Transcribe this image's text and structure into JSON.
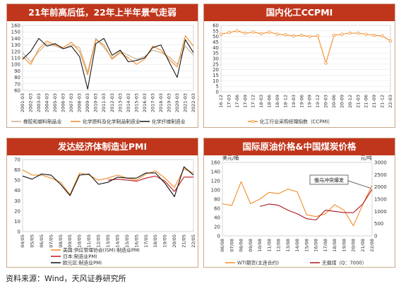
{
  "colors": {
    "title_bg": "#c0361c",
    "orange": "#f28c28",
    "dark": "#1a1a1a",
    "red": "#c0161f",
    "black": "#111111",
    "tan": "#c8b08c",
    "grid": "#dddddd"
  },
  "source_text": "资料来源：Wind，天风证券研究所",
  "chart_data": [
    {
      "id": "p1",
      "type": "line",
      "title": "21年前高后低，22年上半年景气走弱",
      "ylim": [
        60,
        160
      ],
      "yticks": [
        "60",
        "70",
        "80",
        "90",
        "100",
        "110",
        "120",
        "130",
        "140",
        "150",
        "160"
      ],
      "x": [
        "2001-03",
        "2002-03",
        "2003-03",
        "2004-03",
        "2005-03",
        "2006-03",
        "2007-03",
        "2008-03",
        "2009-03",
        "2010-03",
        "2011-03",
        "2012-03",
        "2013-03",
        "2014-03",
        "2015-03",
        "2016-03",
        "2017-03",
        "2018-03",
        "2019-03",
        "2020-03",
        "2021-03",
        "2022-03"
      ],
      "series": [
        {
          "name": "橡胶和塑料制品业",
          "color": "#c8b08c",
          "values": [
            118,
            104,
            120,
            132,
            128,
            124,
            130,
            126,
            88,
            140,
            126,
            110,
            120,
            114,
            108,
            112,
            122,
            118,
            112,
            100,
            128,
            114
          ]
        },
        {
          "name": "化学原料及化学制品制造业",
          "color": "#f28c28",
          "values": [
            112,
            100,
            124,
            136,
            130,
            126,
            134,
            120,
            84,
            138,
            130,
            108,
            118,
            110,
            100,
            108,
            128,
            122,
            108,
            96,
            144,
            128
          ]
        },
        {
          "name": "化学纤维制造业",
          "color": "#1a1a1a",
          "values": [
            108,
            120,
            140,
            128,
            132,
            124,
            128,
            112,
            62,
            132,
            140,
            114,
            122,
            104,
            106,
            110,
            126,
            130,
            104,
            80,
            138,
            118
          ]
        }
      ]
    },
    {
      "id": "p2",
      "type": "line",
      "title": "国内化工CCPMI",
      "ylim": [
        0,
        60
      ],
      "yticks": [
        "0",
        "5",
        "10",
        "15",
        "20",
        "25",
        "30",
        "35",
        "40",
        "45",
        "50",
        "55",
        "60"
      ],
      "x": [
        "16-12",
        "17-03",
        "17-06",
        "17-09",
        "17-12",
        "18-03",
        "18-06",
        "18-09",
        "18-12",
        "19-03",
        "19-06",
        "19-09",
        "19-12",
        "20-03",
        "20-06",
        "20-09",
        "20-12",
        "21-03",
        "21-06",
        "21-09",
        "21-12",
        "22-03"
      ],
      "series": [
        {
          "name": "化工行业采购经理指数（CCPMI）",
          "color": "#f28c28",
          "values": [
            52,
            53.5,
            55,
            53,
            54,
            52.5,
            54,
            52,
            51.5,
            50.5,
            51,
            50,
            50.5,
            26,
            51,
            52,
            53,
            53,
            52,
            51,
            50.5,
            46
          ]
        }
      ]
    },
    {
      "id": "p3",
      "type": "line",
      "title": "发达经济体制造业PMI",
      "ylim": [
        0,
        70
      ],
      "yticks": [
        "0",
        "10",
        "20",
        "30",
        "40",
        "50",
        "60",
        "70"
      ],
      "x": [
        "04/05",
        "05/05",
        "06/05",
        "07/05",
        "08/05",
        "09/05",
        "10/05",
        "11/05",
        "12/05",
        "13/05",
        "14/05",
        "15/05",
        "16/05",
        "17/05",
        "18/05",
        "19/05",
        "20/05",
        "21/05",
        "22/05"
      ],
      "series": [
        {
          "name": "美国:供应管理协会(ISM):制造业PMI",
          "color": "#f28c28",
          "values": [
            60,
            55,
            55,
            52,
            48,
            36,
            57,
            55,
            50,
            52,
            55,
            52,
            50,
            56,
            59,
            52,
            43,
            61,
            57
          ]
        },
        {
          "name": "日本:制造业PMI",
          "color": "#c0161f",
          "values": [
            null,
            null,
            null,
            null,
            null,
            null,
            null,
            null,
            null,
            50,
            51,
            50,
            49,
            52,
            54,
            49,
            39,
            53,
            53
          ]
        },
        {
          "name": "欧元区:制造业PMI",
          "color": "#111111",
          "values": [
            54,
            51,
            56,
            55,
            46,
            35,
            55,
            56,
            46,
            48,
            53,
            52,
            52,
            57,
            57,
            47,
            34,
            63,
            55
          ]
        }
      ]
    },
    {
      "id": "p4",
      "type": "line",
      "title": "国际原油价格&中国煤炭价格",
      "left_unit": "美元/桶",
      "right_unit": "元/吨",
      "left_ylim": [
        0,
        160
      ],
      "left_yticks": [
        "0",
        "20",
        "40",
        "60",
        "80",
        "100",
        "120",
        "140",
        "160"
      ],
      "right_ylim": [
        0,
        3000
      ],
      "right_yticks": [
        "0",
        "500",
        "1000",
        "1500",
        "2000",
        "2500",
        "3000"
      ],
      "x": [
        "06/08",
        "07/08",
        "08/08",
        "09/08",
        "10/08",
        "11/08",
        "12/08",
        "13/08",
        "14/08",
        "15/08",
        "16/08",
        "17/08",
        "18/08",
        "19/08",
        "20/08",
        "21/08",
        "22/08"
      ],
      "annotation": "俄乌冲突爆发",
      "series": [
        {
          "name": "WTI期货(主连合约)",
          "color": "#f28c28",
          "axis": "left",
          "values": [
            70,
            66,
            118,
            70,
            80,
            95,
            92,
            102,
            96,
            46,
            42,
            48,
            68,
            56,
            22,
            68,
            110
          ]
        },
        {
          "name": "无烟煤（Q：7000）",
          "color": "#b0141f",
          "axis": "right",
          "values": [
            null,
            null,
            null,
            null,
            1200,
            1300,
            1250,
            1050,
            900,
            700,
            650,
            1050,
            1000,
            950,
            950,
            1300,
            1900
          ]
        }
      ]
    }
  ]
}
